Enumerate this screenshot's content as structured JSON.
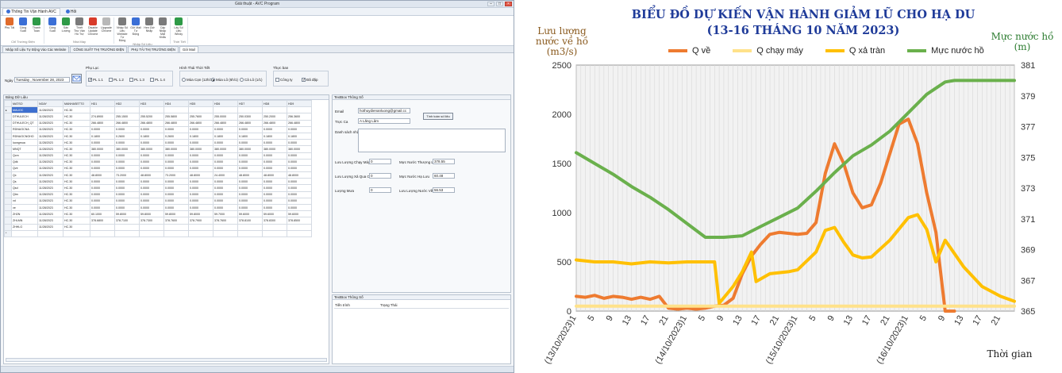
{
  "app": {
    "title": "Giải thuật - AVC Program",
    "ribbon_tabs": [
      {
        "label": "Thông Tin Vận Hành AVC"
      },
      {
        "label": "Hỏi"
      }
    ],
    "ribbon_groups": [
      {
        "label": "Chỉ Trường Điện",
        "items": [
          {
            "label": "Phụ Tải",
            "icon": "chart-icon",
            "color": "#e06b2b"
          },
          {
            "label": "Công Suất",
            "icon": "gauge-icon",
            "color": "#3b6fd6"
          },
          {
            "label": "Thanh Toán",
            "icon": "money-icon",
            "color": "#2e9a47"
          }
        ]
      },
      {
        "label": "Nhà Máy",
        "items": [
          {
            "label": "Công Suất",
            "icon": "gauge-icon",
            "color": "#3b6fd6"
          },
          {
            "label": "Sản Lượng",
            "icon": "bar-icon",
            "color": "#2e9a47"
          },
          {
            "label": "Thiết Thư Vận Hồ Trợ",
            "icon": "doc-icon",
            "color": "#7a7a7a"
          },
          {
            "label": "Disable Update Chrome",
            "icon": "stop-icon",
            "color": "#d83b2a"
          },
          {
            "label": "Upgrade Chrome",
            "icon": "upgrade-icon",
            "color": "#b8b8b8"
          }
        ]
      },
      {
        "label": "Nhập Số Liệu",
        "items": [
          {
            "label": "Nhập Số Liệu Website Tự Động",
            "icon": "net-icon",
            "color": "#7a7a7a"
          },
          {
            "label": "Gửi Mail Tự Động",
            "icon": "mail-icon",
            "color": "#3b6fd6"
          },
          {
            "label": "Hẹn Giờ Nhắp",
            "icon": "clock-icon",
            "color": "#7a7a7a"
          },
          {
            "label": "Cập Nhập Mật Khẩu",
            "icon": "key-icon",
            "color": "#7a7a7a"
          }
        ]
      },
      {
        "label": "Thời Tiết",
        "items": [
          {
            "label": "Lấy Số Liệu Windy",
            "icon": "wind-icon",
            "color": "#2e9a47"
          }
        ]
      }
    ],
    "doc_tabs": [
      {
        "label": "Nhập Số Liệu Tự Động Vào Các Website"
      },
      {
        "label": "CÔNG SUẤT THỊ TRƯỜNG ĐIỆN"
      },
      {
        "label": "PHỤ TẢI THỊ TRƯỜNG ĐIỆN"
      },
      {
        "label": "Gửi Mail"
      }
    ],
    "form": {
      "date_label": "Ngày",
      "date_value": "Tuesday , November 28, 2023",
      "phu_luc_title": "Phụ Lục",
      "phu_luc": [
        {
          "label": "PL 1.1",
          "checked": true
        },
        {
          "label": "PL 1.2",
          "checked": false
        },
        {
          "label": "PL 1.3",
          "checked": false
        },
        {
          "label": "PL 1.4",
          "checked": false
        }
      ],
      "hinh_thai_title": "Hình Thái Thời Tiết",
      "hinh_thai": [
        {
          "label": "Mùa Cạn (12h/3)",
          "on": false
        },
        {
          "label": "Mùa Lũ (6h/1)",
          "on": true
        },
        {
          "label": "Cả Lũ (1/1)",
          "on": false
        }
      ],
      "thuc_ban_title": "Thực ban",
      "thuc_ban": [
        {
          "label": "Công ty",
          "checked": false
        },
        {
          "label": "Đã đặp",
          "checked": true
        }
      ]
    },
    "grid": {
      "title": "Bảng Dữ Liệu",
      "columns": [
        "MATSO",
        "NGAY",
        "MANHASETTO",
        "HD1",
        "HD2",
        "HD3",
        "HD4",
        "HD5",
        "HD6",
        "HD7",
        "HD8",
        "HD9"
      ],
      "rows": [
        [
          "MAUOC",
          "11/28/2023",
          "HC.30",
          "",
          "",
          "",
          "",
          "",
          "",
          "",
          "",
          ""
        ],
        [
          "DTHULECH",
          "11/28/2023",
          "HC.30",
          "274.8900",
          "255.1500",
          "255.5200",
          "255.5800",
          "255.7600",
          "255.0000",
          "250.0300",
          "250.2000",
          "256.3600"
        ],
        [
          "DTHULECH_QT",
          "11/28/2023",
          "HC.30",
          "266.4800",
          "266.4800",
          "266.4800",
          "266.4800",
          "266.4800",
          "266.4800",
          "266.4800",
          "266.4800",
          "266.4800"
        ],
        [
          "RDNUOCNA",
          "11/28/2023",
          "HC.30",
          "0.0000",
          "0.0000",
          "0.0000",
          "0.0000",
          "0.0000",
          "0.0000",
          "0.0000",
          "0.0000",
          "0.0000"
        ],
        [
          "RDNUOCNGHO",
          "11/28/2023",
          "HC.30",
          "0.1800",
          "0.2600",
          "0.1800",
          "0.2600",
          "0.1800",
          "0.1800",
          "0.1800",
          "0.1800",
          "0.1800"
        ],
        [
          "luongmua",
          "11/28/2023",
          "HC.30",
          "0.0000",
          "0.0000",
          "0.0000",
          "0.0000",
          "0.0000",
          "0.0000",
          "0.0000",
          "0.0000",
          "0.0000"
        ],
        [
          "MNQT",
          "11/28/2023",
          "HC.30",
          "380.0000",
          "380.0000",
          "380.0000",
          "380.0000",
          "380.0000",
          "380.0000",
          "380.0000",
          "380.0000",
          "380.0000"
        ],
        [
          "Qcm",
          "11/28/2023",
          "HC.30",
          "0.0000",
          "0.0000",
          "0.0000",
          "0.0000",
          "0.0000",
          "0.0000",
          "0.0000",
          "0.0000",
          "0.0000"
        ],
        [
          "Qdk",
          "11/28/2023",
          "HC.30",
          "0.0000",
          "0.0000",
          "0.0000",
          "0.0000",
          "0.0000",
          "0.0000",
          "0.0000",
          "0.0000",
          "0.0000"
        ],
        [
          "Qve",
          "11/28/2023",
          "HC.30",
          "0.0000",
          "0.0000",
          "0.0000",
          "0.0000",
          "0.0000",
          "0.0000",
          "0.0000",
          "0.0000",
          "0.0000"
        ],
        [
          "Qx",
          "11/28/2023",
          "HC.30",
          "48.8000",
          "73.2000",
          "48.8000",
          "73.2000",
          "48.8000",
          "24.4000",
          "48.8000",
          "48.8000",
          "48.8000"
        ],
        [
          "Qs",
          "11/28/2023",
          "HC.30",
          "0.0000",
          "0.0000",
          "0.0000",
          "0.0000",
          "0.0000",
          "0.0000",
          "0.0000",
          "0.0000",
          "0.0000"
        ],
        [
          "Qsd",
          "11/28/2023",
          "HC.30",
          "0.0000",
          "0.0000",
          "0.0000",
          "0.0000",
          "0.0000",
          "0.0000",
          "0.0000",
          "0.0000",
          "0.0000"
        ],
        [
          "Qtm",
          "11/28/2023",
          "HC.30",
          "0.0000",
          "0.0000",
          "0.0000",
          "0.0000",
          "0.0000",
          "0.0000",
          "0.0000",
          "0.0000",
          "0.0000"
        ],
        [
          "vd",
          "11/28/2023",
          "HC.30",
          "0.0000",
          "0.0000",
          "0.0000",
          "0.0000",
          "0.0000",
          "0.0000",
          "0.0000",
          "0.0000",
          "0.0000"
        ],
        [
          "ve",
          "11/28/2023",
          "HC.30",
          "0.0000",
          "0.0000",
          "0.0000",
          "0.0000",
          "0.0000",
          "0.0000",
          "0.0000",
          "0.0000",
          "0.0000"
        ],
        [
          "ZH2N",
          "11/28/2023",
          "HC.30",
          "60.1000",
          "59.8000",
          "59.8000",
          "59.8000",
          "59.8000",
          "59.7000",
          "59.6000",
          "59.6000",
          "59.6000"
        ],
        [
          "ZHLMN",
          "11/28/2023",
          "HC.30",
          "378.6800",
          "378.7100",
          "378.7300",
          "378.7600",
          "378.7900",
          "378.7600",
          "378.8100",
          "378.8300",
          "378.8500"
        ],
        [
          "ZHHLG",
          "11/28/2023",
          "HC.30",
          "",
          "",
          "",
          "",
          "",
          "",
          "",
          "",
          ""
        ]
      ]
    },
    "right": {
      "title": "TextBox Thông Số",
      "email_label": "Email",
      "email_value": "hothuydienanluong@gmail.cc",
      "trucca_label": "Trực Ca",
      "trucca_value": "A Lăng Lâm",
      "btn_label": "Tính toán số liệu",
      "danhsach_label": "Danh sách nhận Mail",
      "fields": [
        {
          "label": "Lưu Lượng Chạy Máy",
          "value": "0"
        },
        {
          "label": "Lưu Lượng Xả Qua Cửa",
          "value": "0"
        },
        {
          "label": "Lượng Mưa",
          "value": "0"
        }
      ],
      "fields2": [
        {
          "label": "Mực Nước Thượng Lưu",
          "value": "378.55"
        },
        {
          "label": "Mực Nước Hạ Lưu",
          "value": "60.48"
        },
        {
          "label": "Lưu Lượng Nước Về Hồ",
          "value": "56.53"
        }
      ]
    },
    "bottom": {
      "title": "TextBox Thông Số",
      "col1": "Tiến trình",
      "col2": "Trạng Thái"
    }
  },
  "chart_data": {
    "type": "line",
    "title": "BIỂU ĐỒ DỰ KIẾN VẬN HÀNH GIẢM LŨ CHO HẠ DU",
    "subtitle": "(13-16 THÁNG 10 NĂM 2023)",
    "ylabel_left": "Lưu lượng nước về hồ (m3/s)",
    "ylabel_right": "Mực nước hồ (m)",
    "xlabel": "Thời gian",
    "left_ticks": [
      "0",
      "500",
      "1000",
      "1500",
      "2000",
      "2500"
    ],
    "right_ticks": [
      "365",
      "367",
      "369",
      "371",
      "373",
      "375",
      "377",
      "379",
      "381"
    ],
    "ylim_left": [
      0,
      2500
    ],
    "ylim_right": [
      365,
      381
    ],
    "x_ticks": [
      "(13/10/2023)1",
      "5",
      "9",
      "13",
      "17",
      "21",
      "(14/10/2023)1",
      "5",
      "9",
      "13",
      "17",
      "21",
      "(15/10/2023)1",
      "5",
      "9",
      "13",
      "17",
      "21",
      "(16/10/2023)1",
      "5",
      "9",
      "13",
      "17",
      "21"
    ],
    "legend": [
      "Q về",
      "Q chạy máy",
      "Q xả tràn",
      "Mực nước hồ"
    ],
    "colors": {
      "q_ve": "#ee7b30",
      "q_chay_may": "#ffe28a",
      "q_xa_tran": "#ffc000",
      "muc_nuoc": "#6ab04c"
    },
    "x_hours": [
      0,
      4,
      8,
      12,
      16,
      20,
      24,
      28,
      32,
      36,
      40,
      44,
      48,
      52,
      56,
      60,
      64,
      68,
      72,
      76,
      80,
      84,
      88,
      92
    ],
    "series": [
      {
        "name": "Q về",
        "axis": "left",
        "x": [
          0,
          2,
          4,
          6,
          8,
          10,
          12,
          14,
          16,
          18,
          20,
          22,
          24,
          26,
          28,
          30,
          32,
          34,
          36,
          38,
          40,
          42,
          44,
          46,
          48,
          50,
          52,
          54,
          56,
          58,
          60,
          62,
          64,
          66,
          68,
          70,
          72,
          74,
          76,
          78,
          80,
          82
        ],
        "values": [
          150,
          140,
          160,
          130,
          150,
          140,
          120,
          140,
          120,
          150,
          30,
          20,
          30,
          20,
          30,
          50,
          60,
          130,
          380,
          560,
          680,
          780,
          800,
          790,
          780,
          790,
          900,
          1400,
          1700,
          1500,
          1200,
          1050,
          1080,
          1300,
          1600,
          1900,
          1950,
          1700,
          1200,
          800,
          0,
          0
        ]
      },
      {
        "name": "Q chạy máy",
        "axis": "left",
        "x": [
          0,
          95
        ],
        "values": [
          50,
          50
        ]
      },
      {
        "name": "Q xả tràn",
        "axis": "left",
        "x": [
          0,
          4,
          8,
          12,
          16,
          20,
          24,
          30,
          31,
          34,
          36,
          38,
          39,
          42,
          46,
          48,
          52,
          54,
          56,
          58,
          60,
          62,
          64,
          68,
          72,
          74,
          76,
          78,
          80,
          84,
          88,
          92,
          95
        ],
        "values": [
          520,
          500,
          500,
          480,
          500,
          490,
          500,
          500,
          80,
          250,
          400,
          600,
          300,
          380,
          400,
          420,
          600,
          820,
          850,
          700,
          570,
          540,
          550,
          720,
          950,
          980,
          830,
          500,
          720,
          450,
          250,
          150,
          100
        ]
      },
      {
        "name": "Mực nước hồ",
        "axis": "right",
        "x": [
          0,
          4,
          8,
          12,
          16,
          20,
          24,
          28,
          32,
          36,
          40,
          44,
          48,
          52,
          56,
          60,
          64,
          68,
          72,
          76,
          80,
          82,
          84,
          88,
          92,
          95
        ],
        "values": [
          375.3,
          374.6,
          373.9,
          373.1,
          372.4,
          371.6,
          370.7,
          369.8,
          369.8,
          369.9,
          370.5,
          371.1,
          371.7,
          372.8,
          374.0,
          375.1,
          375.8,
          376.7,
          377.9,
          379.1,
          379.9,
          380.0,
          380.0,
          380.0,
          380.0,
          380.0
        ]
      }
    ]
  }
}
